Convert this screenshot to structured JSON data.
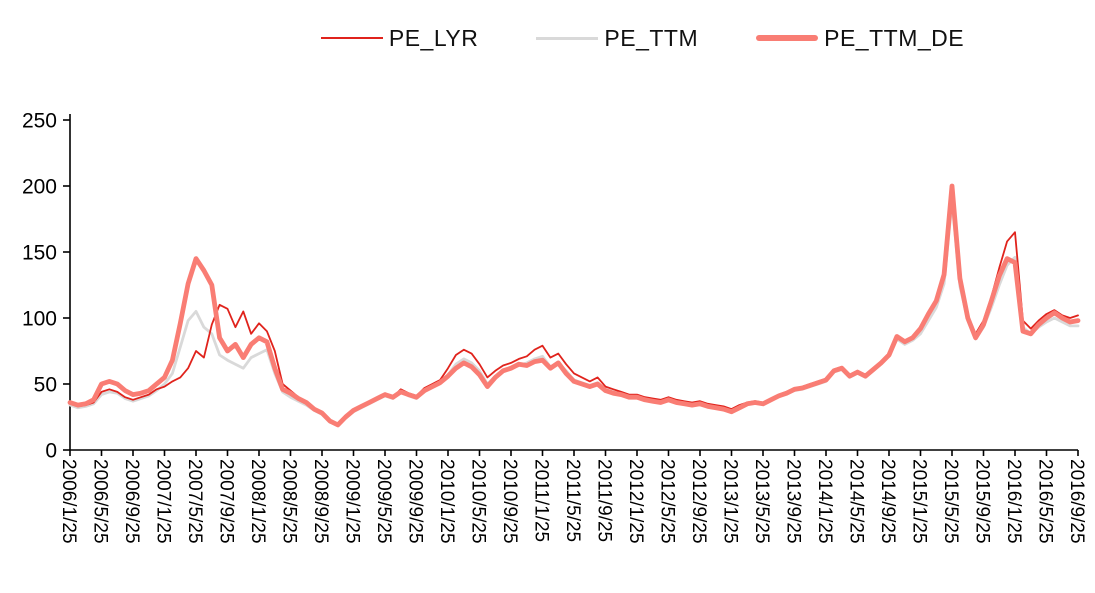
{
  "chart_data": {
    "type": "line",
    "title": "",
    "xlabel": "",
    "ylabel": "",
    "grid": false,
    "legend_position": "top",
    "ylim": [
      0,
      250
    ],
    "yticks": [
      0,
      50,
      100,
      150,
      200,
      250
    ],
    "x_tick_step": 4,
    "x": [
      "2006/1/25",
      "2006/2/25",
      "2006/3/25",
      "2006/4/25",
      "2006/5/25",
      "2006/6/25",
      "2006/7/25",
      "2006/8/25",
      "2006/9/25",
      "2006/10/25",
      "2006/11/25",
      "2006/12/25",
      "2007/1/25",
      "2007/2/25",
      "2007/3/25",
      "2007/4/25",
      "2007/5/25",
      "2007/6/25",
      "2007/7/25",
      "2007/8/25",
      "2007/9/25",
      "2007/10/25",
      "2007/11/25",
      "2007/12/25",
      "2008/1/25",
      "2008/2/25",
      "2008/3/25",
      "2008/4/25",
      "2008/5/25",
      "2008/6/25",
      "2008/7/25",
      "2008/8/25",
      "2008/9/25",
      "2008/10/25",
      "2008/11/25",
      "2008/12/25",
      "2009/1/25",
      "2009/2/25",
      "2009/3/25",
      "2009/4/25",
      "2009/5/25",
      "2009/6/25",
      "2009/7/25",
      "2009/8/25",
      "2009/9/25",
      "2009/10/25",
      "2009/11/25",
      "2009/12/25",
      "2010/1/25",
      "2010/2/25",
      "2010/3/25",
      "2010/4/25",
      "2010/5/25",
      "2010/6/25",
      "2010/7/25",
      "2010/8/25",
      "2010/9/25",
      "2010/10/25",
      "2010/11/25",
      "2010/12/25",
      "2011/1/25",
      "2011/2/25",
      "2011/3/25",
      "2011/4/25",
      "2011/5/25",
      "2011/6/25",
      "2011/7/25",
      "2011/8/25",
      "2011/9/25",
      "2011/10/25",
      "2011/11/25",
      "2011/12/25",
      "2012/1/25",
      "2012/2/25",
      "2012/3/25",
      "2012/4/25",
      "2012/5/25",
      "2012/6/25",
      "2012/7/25",
      "2012/8/25",
      "2012/9/25",
      "2012/10/25",
      "2012/11/25",
      "2012/12/25",
      "2013/1/25",
      "2013/2/25",
      "2013/3/25",
      "2013/4/25",
      "2013/5/25",
      "2013/6/25",
      "2013/7/25",
      "2013/8/25",
      "2013/9/25",
      "2013/10/25",
      "2013/11/25",
      "2013/12/25",
      "2014/1/25",
      "2014/2/25",
      "2014/3/25",
      "2014/4/25",
      "2014/5/25",
      "2014/6/25",
      "2014/7/25",
      "2014/8/25",
      "2014/9/25",
      "2014/10/25",
      "2014/11/25",
      "2014/12/25",
      "2015/1/25",
      "2015/2/25",
      "2015/3/25",
      "2015/4/25",
      "2015/5/25",
      "2015/6/25",
      "2015/7/25",
      "2015/8/25",
      "2015/9/25",
      "2015/10/25",
      "2015/11/25",
      "2015/12/25",
      "2016/1/25",
      "2016/2/25",
      "2016/3/25",
      "2016/4/25",
      "2016/5/25",
      "2016/6/25",
      "2016/7/25",
      "2016/8/25",
      "2016/9/25"
    ],
    "series": [
      {
        "name": "PE_LYR",
        "color": "#e0231c",
        "width": 1.8,
        "values": [
          35,
          33,
          34,
          36,
          44,
          46,
          44,
          40,
          38,
          40,
          42,
          46,
          48,
          52,
          55,
          62,
          75,
          70,
          95,
          110,
          107,
          93,
          105,
          88,
          96,
          90,
          75,
          50,
          45,
          40,
          36,
          32,
          28,
          22,
          20,
          26,
          30,
          33,
          36,
          39,
          43,
          40,
          46,
          43,
          41,
          47,
          50,
          53,
          62,
          72,
          76,
          73,
          65,
          55,
          60,
          64,
          66,
          69,
          71,
          76,
          79,
          70,
          73,
          65,
          58,
          55,
          52,
          55,
          48,
          46,
          44,
          42,
          42,
          40,
          39,
          38,
          40,
          38,
          37,
          36,
          37,
          35,
          34,
          33,
          31,
          34,
          36,
          37,
          36,
          39,
          42,
          44,
          46,
          48,
          50,
          52,
          54,
          61,
          63,
          57,
          60,
          57,
          62,
          67,
          73,
          86,
          83,
          86,
          92,
          102,
          112,
          132,
          197,
          130,
          102,
          88,
          98,
          116,
          138,
          158,
          165,
          98,
          92,
          98,
          103,
          106,
          102,
          100,
          102
        ]
      },
      {
        "name": "PE_TTM",
        "color": "#d9d9d9",
        "width": 2.8,
        "values": [
          34,
          32,
          33,
          35,
          42,
          44,
          43,
          39,
          37,
          39,
          41,
          45,
          50,
          58,
          78,
          98,
          105,
          93,
          88,
          72,
          68,
          65,
          62,
          70,
          73,
          76,
          58,
          44,
          40,
          37,
          34,
          30,
          27,
          21,
          19,
          24,
          29,
          32,
          35,
          38,
          41,
          39,
          44,
          41,
          39,
          45,
          48,
          51,
          57,
          65,
          69,
          66,
          60,
          50,
          56,
          60,
          62,
          64,
          66,
          69,
          71,
          63,
          66,
          60,
          53,
          51,
          49,
          51,
          46,
          44,
          43,
          41,
          41,
          39,
          38,
          37,
          39,
          37,
          36,
          35,
          36,
          34,
          33,
          32,
          30,
          33,
          35,
          36,
          35,
          38,
          41,
          43,
          45,
          46,
          48,
          50,
          52,
          59,
          61,
          55,
          58,
          55,
          60,
          65,
          71,
          84,
          80,
          83,
          88,
          98,
          108,
          126,
          188,
          124,
          98,
          84,
          93,
          108,
          125,
          140,
          146,
          93,
          88,
          93,
          97,
          100,
          97,
          94,
          94
        ]
      },
      {
        "name": "PE_TTM_DE",
        "color": "#f97d74",
        "width": 4.8,
        "values": [
          36,
          34,
          35,
          38,
          50,
          52,
          50,
          45,
          42,
          43,
          45,
          50,
          55,
          68,
          96,
          126,
          145,
          136,
          125,
          85,
          75,
          80,
          70,
          80,
          85,
          82,
          62,
          46,
          43,
          39,
          36,
          31,
          28,
          22,
          19,
          25,
          30,
          33,
          36,
          39,
          42,
          40,
          44,
          42,
          40,
          45,
          48,
          51,
          56,
          62,
          66,
          63,
          57,
          48,
          55,
          60,
          62,
          65,
          64,
          67,
          68,
          62,
          66,
          58,
          52,
          50,
          48,
          50,
          45,
          43,
          42,
          40,
          40,
          38,
          37,
          36,
          38,
          36,
          35,
          34,
          35,
          33,
          32,
          31,
          29,
          32,
          35,
          36,
          35,
          38,
          41,
          43,
          46,
          47,
          49,
          51,
          53,
          60,
          62,
          56,
          59,
          56,
          61,
          66,
          72,
          86,
          82,
          85,
          92,
          103,
          113,
          133,
          200,
          130,
          100,
          85,
          95,
          113,
          132,
          145,
          142,
          90,
          88,
          95,
          100,
          104,
          100,
          97,
          98
        ]
      }
    ]
  }
}
